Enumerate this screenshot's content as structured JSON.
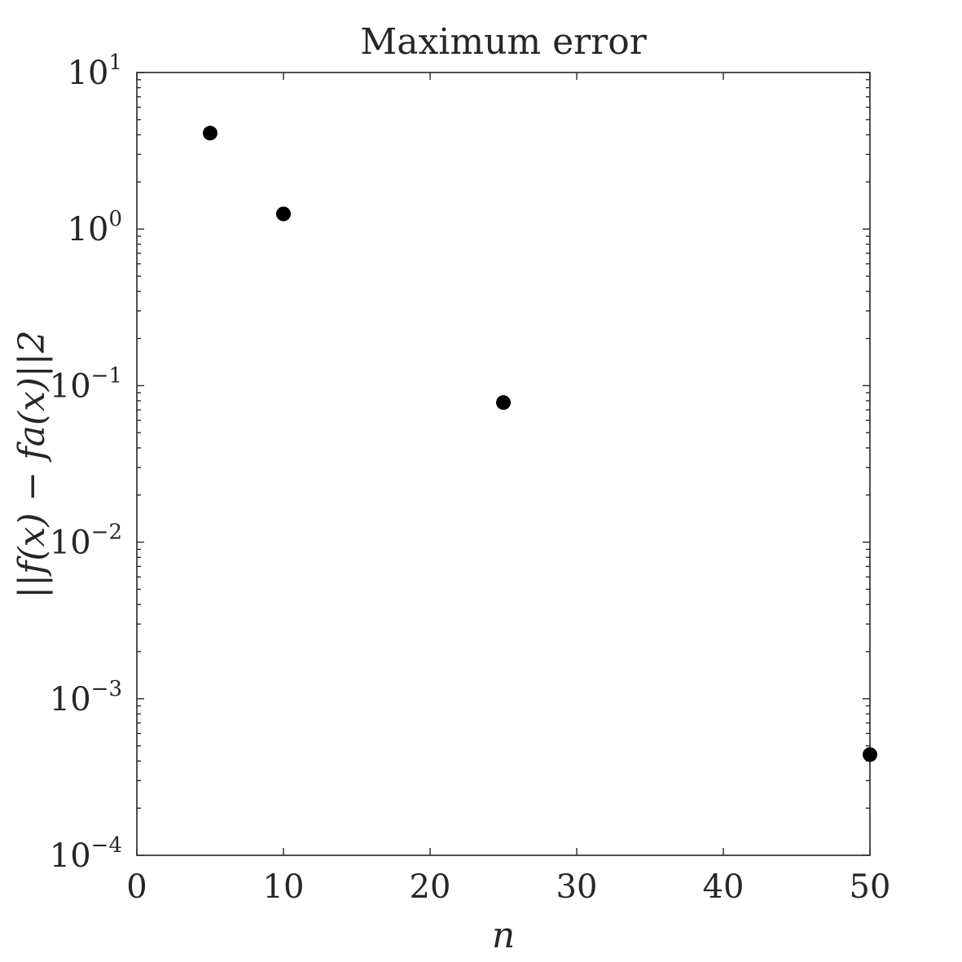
{
  "chart_data": {
    "type": "scatter",
    "title": "Maximum error",
    "xlabel": "n",
    "ylabel": "||f(x) − fa(x)||2",
    "y_scale": "log",
    "xlim": [
      0,
      50
    ],
    "ylim": [
      0.0001,
      10
    ],
    "x_ticks": [
      0,
      10,
      20,
      30,
      40,
      50
    ],
    "y_ticks": [
      {
        "value": 10,
        "base": "10",
        "exp": "1"
      },
      {
        "value": 1,
        "base": "10",
        "exp": "0"
      },
      {
        "value": 0.1,
        "base": "10",
        "exp": "−1"
      },
      {
        "value": 0.01,
        "base": "10",
        "exp": "−2"
      },
      {
        "value": 0.001,
        "base": "10",
        "exp": "−3"
      },
      {
        "value": 0.0001,
        "base": "10",
        "exp": "−4"
      }
    ],
    "grid": false,
    "box": true,
    "marker_color": "#000000",
    "series": [
      {
        "x": [
          5,
          10,
          25,
          50
        ],
        "y": [
          4.1,
          1.25,
          0.078,
          0.00044
        ]
      }
    ]
  }
}
